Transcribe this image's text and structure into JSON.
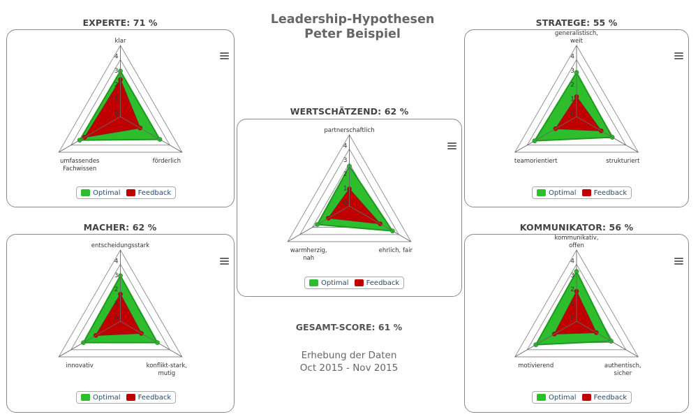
{
  "header": {
    "title_line1": "Leadership-Hypothesen",
    "title_line2": "Peter Beispiel"
  },
  "summary": {
    "total_score": "GESAMT-SCORE: 61 %",
    "period_label": "Erhebung der Daten",
    "period_range": "Oct 2015 - Nov 2015"
  },
  "legend": {
    "optimal": "Optimal",
    "feedback": "Feedback"
  },
  "colors": {
    "optimal_fill": "#2dbd2d",
    "optimal_stroke": "#1f9a1f",
    "optimal_stroke_dark": "#0b7a0b",
    "feedback_fill": "#c00000",
    "feedback_stroke": "#8b1a1a",
    "grid": "#888888",
    "box_border": "#8a8a8a"
  },
  "panels": [
    {
      "id": "experte",
      "title": "EXPERTE: 71 %"
    },
    {
      "id": "wertschaetzend",
      "title": "WERTSCHÄTZEND: 62 %"
    },
    {
      "id": "stratege",
      "title": "STRATEGE: 55 %"
    },
    {
      "id": "macher",
      "title": "MACHER: 62 %"
    },
    {
      "id": "kommunikator",
      "title": "KOMMUNIKATOR: 56 %"
    }
  ],
  "chart_data": [
    {
      "type": "radar",
      "title": "EXPERTE: 71 %",
      "categories": [
        "klar",
        "förderlich",
        "umfassendes\nFachwissen"
      ],
      "series": [
        {
          "name": "Optimal",
          "values": [
            3.2,
            3.2,
            3.3
          ]
        },
        {
          "name": "Feedback",
          "values": [
            2.6,
            1.6,
            2.9
          ]
        }
      ],
      "ticks": [
        0,
        1,
        2,
        3,
        4
      ],
      "ylim": [
        0,
        5
      ],
      "legend_position": "bottom"
    },
    {
      "type": "radar",
      "title": "WERTSCHÄTZEND: 62 %",
      "categories": [
        "partnerschaftlich",
        "ehrlich, fair",
        "warmherzig,\nnah"
      ],
      "series": [
        {
          "name": "Optimal",
          "values": [
            2.8,
            3.5,
            2.6
          ]
        },
        {
          "name": "Feedback",
          "values": [
            1.2,
            2.5,
            1.7
          ]
        }
      ],
      "ticks": [
        0,
        1,
        2,
        3,
        4
      ],
      "ylim": [
        0,
        5
      ],
      "legend_position": "bottom"
    },
    {
      "type": "radar",
      "title": "STRATEGE: 55 %",
      "categories": [
        "generalistisch,\nweit",
        "strukturiert",
        "teamorientiert"
      ],
      "series": [
        {
          "name": "Optimal",
          "values": [
            3.1,
            2.9,
            3.4
          ]
        },
        {
          "name": "Feedback",
          "values": [
            1.4,
            2.0,
            1.7
          ]
        }
      ],
      "ticks": [
        0,
        1,
        2,
        3,
        4
      ],
      "ylim": [
        0,
        5
      ],
      "legend_position": "bottom"
    },
    {
      "type": "radar",
      "title": "MACHER: 62 %",
      "categories": [
        "entscheidungsstark",
        "konflikt-stark,\nmutig",
        "innovativ"
      ],
      "series": [
        {
          "name": "Optimal",
          "values": [
            3.2,
            3.0,
            3.0
          ]
        },
        {
          "name": "Feedback",
          "values": [
            1.9,
            1.7,
            2.0
          ]
        }
      ],
      "ticks": [
        0,
        1,
        2,
        3,
        4
      ],
      "ylim": [
        0,
        5
      ],
      "legend_position": "bottom"
    },
    {
      "type": "radar",
      "title": "KOMMUNIKATOR: 56 %",
      "categories": [
        "kommunikativ,\noffen",
        "authentisch,\nsicher",
        "motivierend"
      ],
      "series": [
        {
          "name": "Optimal",
          "values": [
            3.5,
            2.8,
            3.3
          ]
        },
        {
          "name": "Feedback",
          "values": [
            2.1,
            1.6,
            1.8
          ]
        }
      ],
      "ticks": [
        0,
        1,
        2,
        3,
        4
      ],
      "ylim": [
        0,
        5
      ],
      "legend_position": "bottom"
    }
  ]
}
